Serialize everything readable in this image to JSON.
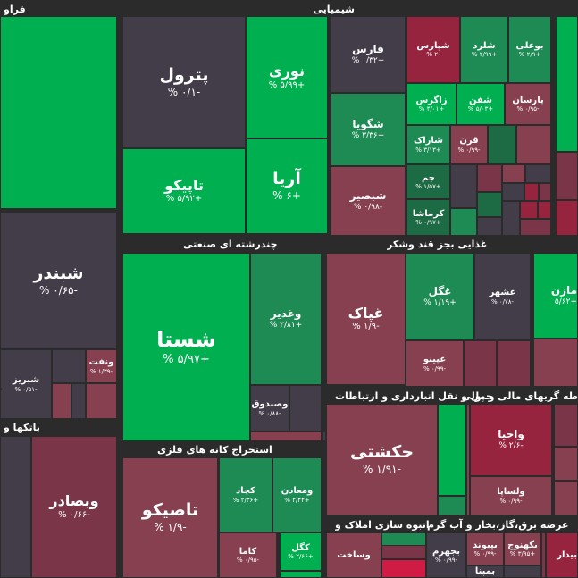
{
  "colors": {
    "strong_green": "#00b050",
    "green": "#1e8b55",
    "dark_green": "#1d6b44",
    "neutral": "#433d4a",
    "red": "#7a3549",
    "light_red": "#87404f",
    "strong_red": "#97243f",
    "crimson": "#d01c45"
  },
  "sectors": [
    {
      "label": "شیمیایی"
    },
    {
      "label": "فراو"
    },
    {
      "label": "چندرشته ای صنعتی"
    },
    {
      "label": "غذایی بجز قند وشکر"
    },
    {
      "label": "حمل و نقل انبارداری و ارتباطات"
    },
    {
      "label": "طه گریهای مالی و پولی"
    },
    {
      "label": "باتکها و"
    },
    {
      "label": "استخراج کانه های فلزی"
    },
    {
      "label": "انبوه سازی املاک و"
    },
    {
      "label": "عرضه برق،گاز،بخار و آب گرم"
    }
  ],
  "tiles": [
    {
      "name": "",
      "change": ""
    },
    {
      "name": "پترول",
      "change": "-۰/۱ %"
    },
    {
      "name": "نوری",
      "change": "+۵/۹۹ %"
    },
    {
      "name": "تاپیکو",
      "change": "+۵/۹۲ %"
    },
    {
      "name": "آریا",
      "change": "+۶ %"
    },
    {
      "name": "فارس",
      "change": "+۰/۳۲ %"
    },
    {
      "name": "شگویا",
      "change": "+۳/۳۶ %"
    },
    {
      "name": "شبصیر",
      "change": "-۰/۹۸ %"
    },
    {
      "name": "شپارس",
      "change": "-۲ %"
    },
    {
      "name": "شلرد",
      "change": "+۲/۹۹ %"
    },
    {
      "name": "بوعلی",
      "change": "+۲/۹ %"
    },
    {
      "name": "زاگرس",
      "change": "+۴/۰۱ %"
    },
    {
      "name": "شفن",
      "change": "+۵/۰۳ %"
    },
    {
      "name": "پارسان",
      "change": "-۰/۹۵ %"
    },
    {
      "name": "شاراک",
      "change": "+۳/۱۳ %"
    },
    {
      "name": "قرن",
      "change": "-۰/۹۹ %"
    },
    {
      "name": "جم",
      "change": "+۱/۵۷ %"
    },
    {
      "name": "کرماشا",
      "change": "+۰/۹۷ %"
    },
    {
      "name": "شبندر",
      "change": "-۰/۶۵ %"
    },
    {
      "name": "شبریز",
      "change": "-۰/۵۱ %"
    },
    {
      "name": "ونفت",
      "change": "-۱/۳۹ %"
    },
    {
      "name": "شستا",
      "change": "+۵/۹۷ %"
    },
    {
      "name": "وغدیر",
      "change": "+۲/۸۱ %"
    },
    {
      "name": "وصندوق",
      "change": "-۰/۸۸ %"
    },
    {
      "name": "غپاک",
      "change": "-۱/۹ %"
    },
    {
      "name": "غگل",
      "change": "+۱/۱۹ %"
    },
    {
      "name": "غشهر",
      "change": "-۰/۷۸ %"
    },
    {
      "name": "مازن",
      "change": "+۵/۶۲"
    },
    {
      "name": "غپینو",
      "change": "-۰/۹۹ %"
    },
    {
      "name": "حکشتی",
      "change": "-۱/۹۱ %"
    },
    {
      "name": "واحیا",
      "change": "-۲/۶ %"
    },
    {
      "name": "ولساپا",
      "change": "-۰/۹۹ %"
    },
    {
      "name": "تاصیکو",
      "change": "-۱/۹ %"
    },
    {
      "name": "وبصادر",
      "change": "-۰/۶۶ %"
    },
    {
      "name": "کچاد",
      "change": "+۲/۳۶ %"
    },
    {
      "name": "ومعادن",
      "change": "+۲/۴۴ %"
    },
    {
      "name": "کاما",
      "change": "-۰/۹۵ %"
    },
    {
      "name": "کگل",
      "change": "+۲/۶۶ %"
    },
    {
      "name": "وساخت",
      "change": ""
    },
    {
      "name": "بجهرم",
      "change": "-۰/۹۹ %"
    },
    {
      "name": "بپیوند",
      "change": "-۰/۹۹ %"
    },
    {
      "name": "بکهنوج",
      "change": "+۳/۹۵ %"
    },
    {
      "name": "بمپنا",
      "change": ""
    },
    {
      "name": "بیدار",
      "change": ""
    }
  ],
  "fillers": [
    "strong_green",
    "dark_green",
    "light_red",
    "neutral",
    "red",
    "light_red",
    "neutral",
    "red",
    "green",
    "dark_green",
    "neutral",
    "neutral",
    "strong_red",
    "red",
    "neutral",
    "strong_red",
    "strong_red",
    "red",
    "strong_red",
    "neutral",
    "light_red",
    "neutral",
    "light_red",
    "neutral",
    "light_red",
    "neutral",
    "red",
    "red",
    "light_red",
    "strong_green",
    "green",
    "strong_green",
    "green",
    "red",
    "light_red",
    "light_red",
    "neutral",
    "red",
    "neutral",
    "red",
    "crimson",
    "light_red",
    "neutral",
    "strong_red"
  ]
}
